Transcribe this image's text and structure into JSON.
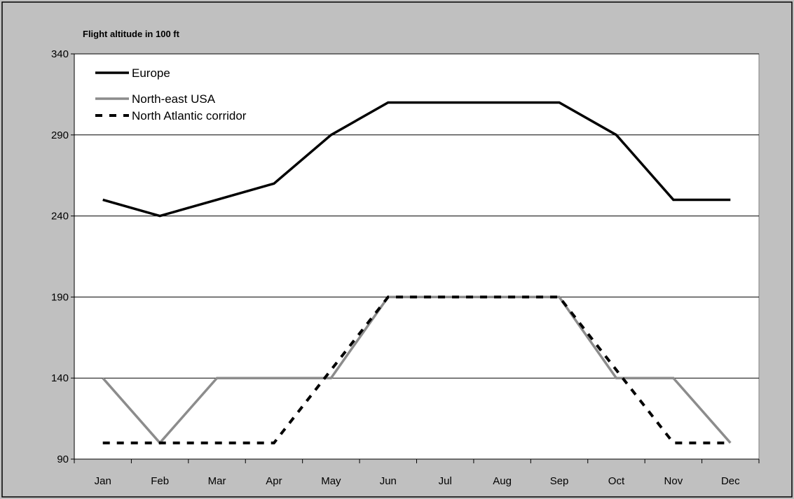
{
  "chart_data": {
    "type": "line",
    "title": "Flight altitude in 100 ft",
    "xlabel": "",
    "ylabel": "",
    "categories": [
      "Jan",
      "Feb",
      "Mar",
      "Apr",
      "May",
      "Jun",
      "Jul",
      "Aug",
      "Sep",
      "Oct",
      "Nov",
      "Dec"
    ],
    "ylim": [
      90,
      340
    ],
    "yticks": [
      90,
      140,
      190,
      240,
      290,
      340
    ],
    "grid": "horizontal",
    "legend_position": "top-left",
    "plot_background": "#ffffff",
    "outer_background": "#c0c0c0",
    "series": [
      {
        "name": "Europe",
        "color": "#000000",
        "style": "solid",
        "values": [
          250,
          240,
          250,
          260,
          290,
          310,
          310,
          310,
          310,
          290,
          250,
          250
        ]
      },
      {
        "name": "North-east USA",
        "color": "#8c8c8c",
        "style": "solid",
        "values": [
          140,
          100,
          140,
          140,
          140,
          190,
          190,
          190,
          190,
          140,
          140,
          100
        ]
      },
      {
        "name": "North Atlantic corridor",
        "color": "#000000",
        "style": "dashed",
        "values": [
          100,
          100,
          100,
          100,
          145,
          190,
          190,
          190,
          190,
          145,
          100,
          100
        ]
      }
    ]
  }
}
